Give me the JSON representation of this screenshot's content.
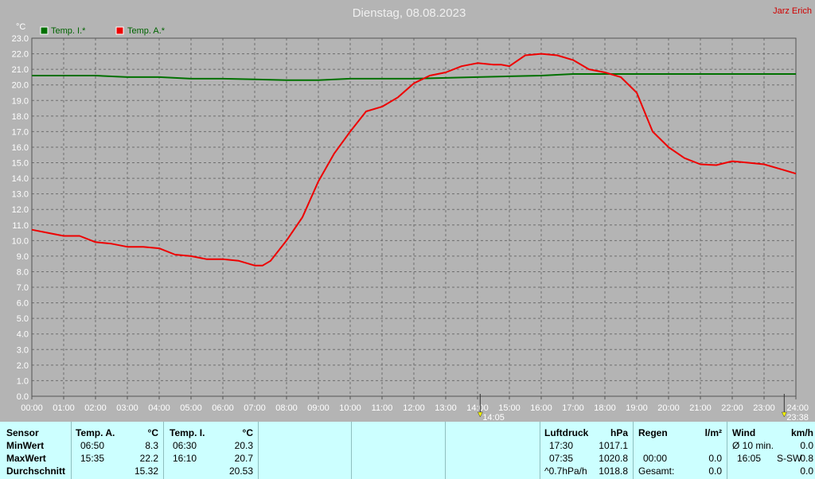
{
  "header": {
    "title": "Dienstag, 08.08.2023",
    "author": "Jarz Erich"
  },
  "chart_data": {
    "type": "line",
    "ylabel": "°C",
    "ylim": [
      0,
      23
    ],
    "ytick_step": 1,
    "xlim": [
      0,
      24
    ],
    "x_tick_labels": [
      "00:00",
      "01:00",
      "02:00",
      "03:00",
      "04:00",
      "05:00",
      "06:00",
      "07:00",
      "08:00",
      "09:00",
      "10:00",
      "11:00",
      "12:00",
      "13:00",
      "14:00",
      "15:00",
      "16:00",
      "17:00",
      "18:00",
      "19:00",
      "20:00",
      "21:00",
      "22:00",
      "23:00",
      "24:00"
    ],
    "grid": true,
    "legend_position": "top-left",
    "series": [
      {
        "name": "Temp. I.*",
        "color": "#007000",
        "x": [
          0,
          2,
          3,
          4,
          5,
          6,
          7,
          8,
          9,
          10,
          11,
          12,
          13,
          14,
          15,
          16,
          17,
          18,
          19,
          20,
          21,
          22,
          23,
          24
        ],
        "y": [
          20.6,
          20.6,
          20.5,
          20.5,
          20.4,
          20.4,
          20.35,
          20.3,
          20.3,
          20.4,
          20.4,
          20.4,
          20.45,
          20.5,
          20.55,
          20.6,
          20.7,
          20.7,
          20.7,
          20.7,
          20.7,
          20.7,
          20.7,
          20.7
        ]
      },
      {
        "name": "Temp. A.*",
        "color": "#ee0000",
        "x": [
          0,
          0.5,
          1,
          1.5,
          2,
          2.5,
          3,
          3.5,
          4,
          4.5,
          5,
          5.5,
          6,
          6.5,
          7,
          7.25,
          7.5,
          8,
          8.5,
          9,
          9.5,
          10,
          10.5,
          11,
          11.5,
          12,
          12.5,
          13,
          13.5,
          14,
          14.5,
          14.75,
          15,
          15.5,
          16,
          16.5,
          17,
          17.5,
          18,
          18.5,
          19,
          19.5,
          20,
          20.5,
          21,
          21.5,
          22,
          22.5,
          23,
          23.5,
          24
        ],
        "y": [
          10.7,
          10.5,
          10.3,
          10.3,
          9.9,
          9.8,
          9.6,
          9.6,
          9.5,
          9.1,
          9.0,
          8.8,
          8.8,
          8.7,
          8.4,
          8.4,
          8.7,
          10.0,
          11.5,
          13.8,
          15.6,
          17.0,
          18.3,
          18.6,
          19.2,
          20.1,
          20.6,
          20.8,
          21.2,
          21.4,
          21.3,
          21.3,
          21.2,
          21.9,
          22.0,
          21.9,
          21.6,
          21.0,
          20.8,
          20.5,
          19.5,
          17.0,
          16.0,
          15.3,
          14.9,
          14.85,
          15.1,
          15.0,
          14.9,
          14.6,
          14.3
        ]
      }
    ],
    "markers": [
      {
        "x": 14.083,
        "label": "14:05"
      },
      {
        "x": 23.633,
        "label": "23:38"
      }
    ]
  },
  "table": {
    "sensor": {
      "header": "Sensor",
      "min": "MinWert",
      "max": "MaxWert",
      "avg": "Durchschnitt"
    },
    "temp_a": {
      "header": "Temp. A.",
      "unit": "°C",
      "min_time": "06:50",
      "min_val": "8.3",
      "max_time": "15:35",
      "max_val": "22.2",
      "avg": "15.32"
    },
    "temp_i": {
      "header": "Temp. I.",
      "unit": "°C",
      "min_time": "06:30",
      "min_val": "20.3",
      "max_time": "16:10",
      "max_val": "20.7",
      "avg": "20.53"
    },
    "pressure": {
      "header": "Luftdruck",
      "unit": "hPa",
      "r1_time": "17:30",
      "r1_val": "1017.1",
      "r2_time": "07:35",
      "r2_val": "1020.8",
      "r3_label": "^0.7hPa/h",
      "r3_val": "1018.8"
    },
    "rain": {
      "header": "Regen",
      "unit": "l/m²",
      "r2_time": "00:00",
      "r2_val": "0.0",
      "r3_label": "Gesamt:",
      "r3_val": "0.0"
    },
    "wind": {
      "header": "Wind",
      "unit": "km/h",
      "r1_label": "Ø 10 min.",
      "r1_val": "0.0",
      "r2_time": "16:05",
      "r2_dir": "S-SW",
      "r2_val": "0.8",
      "r3_val": "0.0"
    }
  }
}
